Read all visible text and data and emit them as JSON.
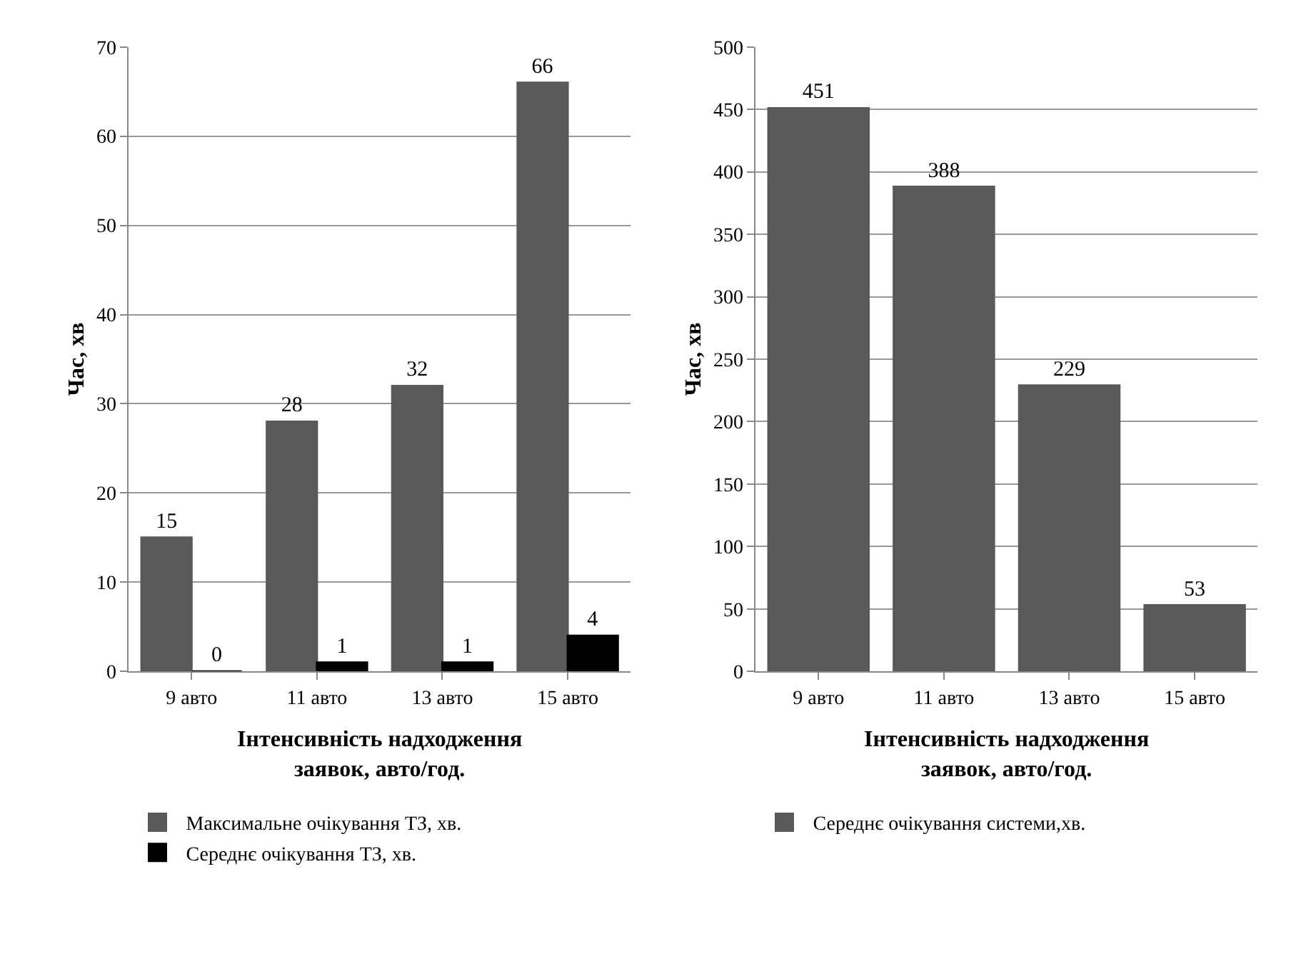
{
  "chart_data": [
    {
      "type": "bar",
      "categories": [
        "9 авто",
        "11 авто",
        "13 авто",
        "15 авто"
      ],
      "series": [
        {
          "name": "Максимальне очікування ТЗ, хв.",
          "color": "#595959",
          "values": [
            15,
            28,
            32,
            66
          ]
        },
        {
          "name": "Середнє очікування ТЗ, хв.",
          "color": "#000000",
          "values": [
            0,
            1,
            1,
            4
          ]
        }
      ],
      "xlabel": "Інтенсивність надходження заявок, авто/год.",
      "ylabel": "Час, хв",
      "ylim": [
        0,
        70
      ],
      "yticks": [
        0,
        10,
        20,
        30,
        40,
        50,
        60,
        70
      ],
      "grid": "y",
      "legend": "bottom",
      "data_labels": true
    },
    {
      "type": "bar",
      "categories": [
        "9 авто",
        "11 авто",
        "13 авто",
        "15 авто"
      ],
      "series": [
        {
          "name": "Середнє очікування системи,хв.",
          "color": "#595959",
          "values": [
            451,
            388,
            229,
            53
          ]
        }
      ],
      "xlabel": "Інтенсивність надходження заявок, авто/год.",
      "ylabel": "Час, хв",
      "ylim": [
        0,
        500
      ],
      "yticks": [
        0,
        50,
        100,
        150,
        200,
        250,
        300,
        350,
        400,
        450,
        500
      ],
      "grid": "y",
      "legend": "bottom",
      "data_labels": true
    }
  ]
}
